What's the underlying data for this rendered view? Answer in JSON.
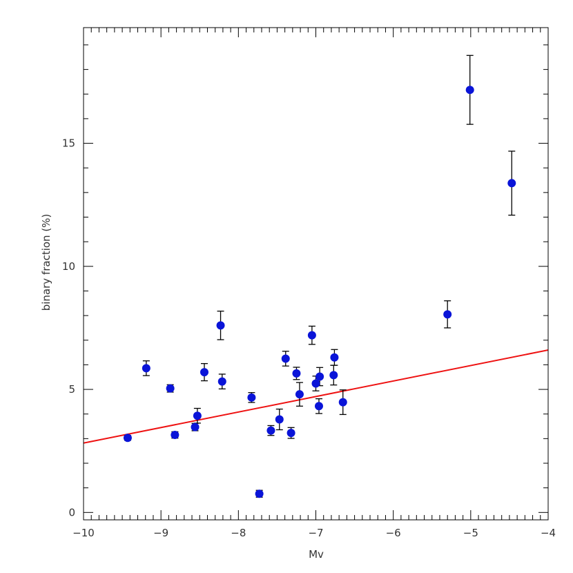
{
  "chart_data": {
    "type": "scatter",
    "title": "",
    "xlabel": "Mv",
    "ylabel": "binary fraction (%)",
    "xlim": [
      -10,
      -4
    ],
    "ylim": [
      -0.3,
      19.7
    ],
    "x_ticks": [
      -10,
      -9,
      -8,
      -7,
      -6,
      -5,
      -4
    ],
    "x_tick_labels": [
      "−10",
      "−9",
      "−8",
      "−7",
      "−6",
      "−5",
      "−4"
    ],
    "y_ticks": [
      0,
      5,
      10,
      15
    ],
    "y_tick_labels": [
      "0",
      "5",
      "10",
      "15"
    ],
    "grid": false,
    "colors": {
      "points": "#0a14d8",
      "fit_line": "#ee1111",
      "error_bars": "#000000",
      "axes": "#000000"
    },
    "points": [
      {
        "x": -9.43,
        "y": 3.03,
        "err": 0.1
      },
      {
        "x": -9.19,
        "y": 5.86,
        "err": 0.3
      },
      {
        "x": -8.88,
        "y": 5.04,
        "err": 0.15
      },
      {
        "x": -8.82,
        "y": 3.15,
        "err": 0.13
      },
      {
        "x": -8.56,
        "y": 3.47,
        "err": 0.15
      },
      {
        "x": -8.53,
        "y": 3.93,
        "err": 0.3
      },
      {
        "x": -8.44,
        "y": 5.7,
        "err": 0.35
      },
      {
        "x": -8.23,
        "y": 7.6,
        "err": 0.58
      },
      {
        "x": -8.21,
        "y": 5.32,
        "err": 0.3
      },
      {
        "x": -7.83,
        "y": 4.67,
        "err": 0.2
      },
      {
        "x": -7.73,
        "y": 0.76,
        "err": 0.14
      },
      {
        "x": -7.58,
        "y": 3.33,
        "err": 0.2
      },
      {
        "x": -7.47,
        "y": 3.78,
        "err": 0.42
      },
      {
        "x": -7.39,
        "y": 6.25,
        "err": 0.3
      },
      {
        "x": -7.32,
        "y": 3.23,
        "err": 0.22
      },
      {
        "x": -7.25,
        "y": 5.65,
        "err": 0.25
      },
      {
        "x": -7.21,
        "y": 4.8,
        "err": 0.48
      },
      {
        "x": -7.05,
        "y": 7.2,
        "err": 0.37
      },
      {
        "x": -7.0,
        "y": 5.24,
        "err": 0.3
      },
      {
        "x": -6.96,
        "y": 4.32,
        "err": 0.3
      },
      {
        "x": -6.95,
        "y": 5.52,
        "err": 0.37
      },
      {
        "x": -6.77,
        "y": 5.58,
        "err": 0.4
      },
      {
        "x": -6.76,
        "y": 6.3,
        "err": 0.32
      },
      {
        "x": -6.65,
        "y": 4.48,
        "err": 0.5
      },
      {
        "x": -5.3,
        "y": 8.05,
        "err": 0.55
      },
      {
        "x": -5.01,
        "y": 17.17,
        "err": 1.4
      },
      {
        "x": -4.47,
        "y": 13.38,
        "err": 1.3
      }
    ],
    "fit_line": {
      "x": [
        -10,
        -4
      ],
      "y": [
        2.82,
        6.6
      ]
    }
  }
}
